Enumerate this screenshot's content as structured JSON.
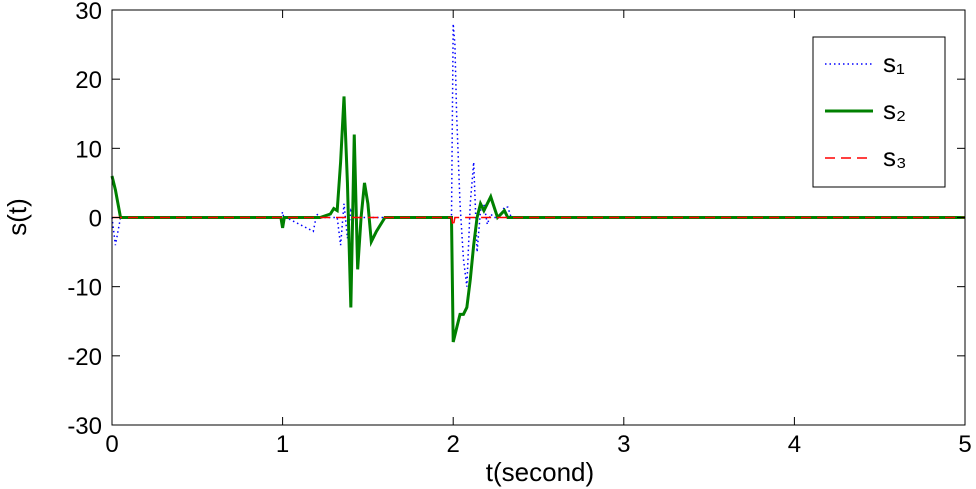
{
  "chart_data": {
    "type": "line",
    "x_label": "t(second)",
    "y_label": "s(t)",
    "x": [
      0,
      0.02,
      0.05,
      0.1,
      0.99,
      1.0,
      1.01,
      1.02,
      1.18,
      1.2,
      1.22,
      1.28,
      1.3,
      1.32,
      1.34,
      1.36,
      1.38,
      1.4,
      1.42,
      1.44,
      1.46,
      1.48,
      1.5,
      1.52,
      1.55,
      1.6,
      1.98,
      1.99,
      2.0,
      2.01,
      2.02,
      2.04,
      2.06,
      2.08,
      2.1,
      2.12,
      2.14,
      2.16,
      2.18,
      2.2,
      2.22,
      2.24,
      2.26,
      2.28,
      2.3,
      2.32,
      2.34,
      2.4,
      5
    ],
    "series": [
      {
        "name": "s₁",
        "color": "#0000ff",
        "dash": "dotted",
        "values": [
          0,
          -4,
          0,
          0,
          0,
          0.8,
          -0.5,
          0,
          -2,
          0.5,
          0,
          0,
          0,
          0,
          -4,
          2,
          -3,
          1,
          0,
          0,
          0,
          0,
          0,
          0,
          0,
          0,
          0,
          0,
          28,
          25,
          15,
          2,
          -6,
          -10,
          2,
          8,
          -5,
          1,
          2,
          -1,
          0.5,
          0,
          0,
          0.5,
          1.5,
          1.5,
          0,
          0,
          0
        ]
      },
      {
        "name": "s₂",
        "color": "#008000",
        "dash": "solid",
        "values": [
          6,
          4,
          0,
          0,
          0,
          -1.5,
          0,
          0,
          0,
          0,
          0,
          0.5,
          1.3,
          1,
          8,
          17.5,
          5,
          -13,
          12,
          -7.5,
          0,
          5,
          2,
          -3.5,
          -2,
          0,
          0,
          0,
          -18,
          -17,
          -16,
          -14,
          -14,
          -13,
          -9,
          -4,
          0,
          2,
          1,
          2,
          3,
          1.5,
          0,
          0.5,
          1,
          0,
          0,
          0,
          0
        ]
      },
      {
        "name": "s₃",
        "color": "#ff0000",
        "dash": "dashed",
        "values": [
          0,
          0,
          0,
          0,
          0,
          0,
          0,
          0,
          0,
          0,
          0,
          0,
          0,
          0,
          0,
          0,
          0,
          0,
          0,
          0,
          0,
          0,
          0,
          0,
          0,
          0,
          0,
          0,
          -1.3,
          0,
          0,
          0,
          0,
          0,
          0,
          0,
          0,
          0,
          0,
          0,
          0,
          0,
          0,
          0,
          0,
          0,
          0,
          0,
          0
        ]
      }
    ],
    "xlim": [
      0,
      5
    ],
    "ylim": [
      -30,
      30
    ],
    "xticks": [
      0,
      1,
      2,
      3,
      4,
      5
    ],
    "yticks": [
      -30,
      -20,
      -10,
      0,
      10,
      20,
      30
    ],
    "grid": false,
    "legend": "top-right"
  }
}
